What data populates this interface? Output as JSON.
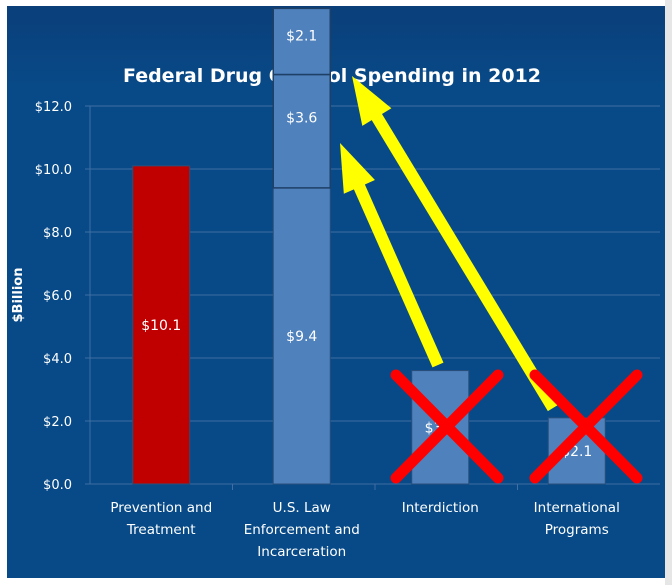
{
  "chart_data": {
    "type": "bar",
    "title": "Federal Drug Control Spending in 2012",
    "ylabel": "$Billion",
    "ylim": [
      0,
      12
    ],
    "yticks": [
      "$0.0",
      "$2.0",
      "$4.0",
      "$6.0",
      "$8.0",
      "$10.0",
      "$12.0"
    ],
    "grid": true,
    "categories": [
      [
        "Prevention and",
        "Treatment"
      ],
      [
        "U.S. Law",
        "Enforcement and",
        "Incarceration"
      ],
      [
        "Interdiction"
      ],
      [
        "International",
        "Programs"
      ]
    ],
    "bars": [
      {
        "value": 10.1,
        "label": "$10.1",
        "color": "#c00000"
      },
      {
        "value": 9.4,
        "label": "$9.4",
        "color": "#4f81bd",
        "stacked": [
          {
            "value": 3.6,
            "label": "$3.6"
          },
          {
            "value": 2.1,
            "label": "$2.1"
          }
        ]
      },
      {
        "value": 3.6,
        "label": "$3.6",
        "color": "#4f81bd",
        "crossed_out": true
      },
      {
        "value": 2.1,
        "label": "$2.1",
        "color": "#4f81bd",
        "crossed_out": true
      }
    ],
    "annotations": {
      "arrow_color": "#ffff00",
      "cross_color": "#ff0000",
      "arrows": [
        "Interdiction moved onto U.S. Law Enforcement bar",
        "International Programs moved onto U.S. Law Enforcement bar"
      ]
    },
    "background": "#08498a"
  }
}
